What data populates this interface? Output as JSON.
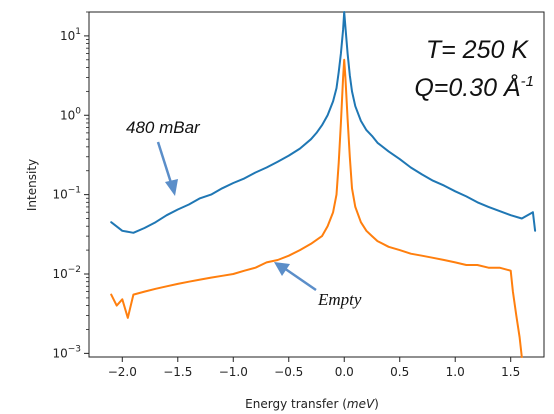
{
  "chart_data": {
    "type": "line",
    "xlabel": "Energy transfer",
    "xlabel_unit": "meV",
    "ylabel": "Intensity",
    "y_scale": "log",
    "xlim": [
      -2.3,
      1.8
    ],
    "ylim": [
      0.0009,
      20
    ],
    "x_ticks": [
      -2.0,
      -1.5,
      -1.0,
      -0.5,
      0.0,
      0.5,
      1.0,
      1.5
    ],
    "x_tick_labels": [
      "−2.0",
      "−1.5",
      "−1.0",
      "−0.5",
      "0.0",
      "0.5",
      "1.0",
      "1.5"
    ],
    "y_ticks": [
      0.001,
      0.01,
      0.1,
      1,
      10
    ],
    "y_tick_labels": [
      {
        "base": "10",
        "exp": "−3"
      },
      {
        "base": "10",
        "exp": "−2"
      },
      {
        "base": "10",
        "exp": "−1"
      },
      {
        "base": "10",
        "exp": "0"
      },
      {
        "base": "10",
        "exp": "1"
      }
    ],
    "grid": false,
    "series": [
      {
        "name": "480 mBar",
        "color": "#1f77b4",
        "x": [
          -2.1,
          -2.0,
          -1.9,
          -1.8,
          -1.7,
          -1.6,
          -1.5,
          -1.4,
          -1.3,
          -1.2,
          -1.1,
          -1.0,
          -0.9,
          -0.8,
          -0.7,
          -0.6,
          -0.5,
          -0.4,
          -0.3,
          -0.25,
          -0.2,
          -0.15,
          -0.1,
          -0.07,
          -0.05,
          -0.03,
          -0.01,
          0.0,
          0.01,
          0.03,
          0.05,
          0.07,
          0.1,
          0.15,
          0.2,
          0.25,
          0.3,
          0.4,
          0.5,
          0.6,
          0.7,
          0.8,
          0.9,
          1.0,
          1.1,
          1.2,
          1.3,
          1.4,
          1.5,
          1.6,
          1.7,
          1.72
        ],
        "values": [
          0.045,
          0.035,
          0.033,
          0.038,
          0.045,
          0.055,
          0.065,
          0.075,
          0.09,
          0.1,
          0.12,
          0.14,
          0.16,
          0.19,
          0.22,
          0.26,
          0.31,
          0.38,
          0.5,
          0.6,
          0.75,
          1.0,
          1.5,
          2.2,
          3.5,
          6.0,
          12.0,
          20.0,
          13.0,
          6.0,
          3.2,
          2.0,
          1.3,
          0.85,
          0.65,
          0.55,
          0.45,
          0.35,
          0.28,
          0.22,
          0.18,
          0.15,
          0.13,
          0.11,
          0.095,
          0.08,
          0.07,
          0.062,
          0.055,
          0.05,
          0.06,
          0.035
        ]
      },
      {
        "name": "Empty",
        "color": "#ff7f0e",
        "x": [
          -2.1,
          -2.05,
          -2.0,
          -1.95,
          -1.9,
          -1.8,
          -1.7,
          -1.6,
          -1.5,
          -1.4,
          -1.3,
          -1.2,
          -1.1,
          -1.0,
          -0.9,
          -0.8,
          -0.7,
          -0.6,
          -0.5,
          -0.4,
          -0.3,
          -0.2,
          -0.15,
          -0.1,
          -0.07,
          -0.05,
          -0.03,
          -0.01,
          0.0,
          0.01,
          0.03,
          0.05,
          0.07,
          0.1,
          0.15,
          0.2,
          0.25,
          0.3,
          0.4,
          0.5,
          0.6,
          0.7,
          0.8,
          0.9,
          1.0,
          1.1,
          1.2,
          1.3,
          1.4,
          1.5,
          1.52,
          1.55,
          1.58,
          1.6
        ],
        "values": [
          0.0055,
          0.004,
          0.0048,
          0.0028,
          0.0055,
          0.006,
          0.0065,
          0.007,
          0.0075,
          0.008,
          0.0085,
          0.009,
          0.0095,
          0.01,
          0.011,
          0.012,
          0.014,
          0.015,
          0.017,
          0.02,
          0.024,
          0.03,
          0.04,
          0.06,
          0.1,
          0.25,
          0.8,
          3.0,
          5.0,
          3.0,
          0.9,
          0.3,
          0.12,
          0.07,
          0.045,
          0.035,
          0.03,
          0.026,
          0.022,
          0.02,
          0.018,
          0.017,
          0.016,
          0.015,
          0.014,
          0.013,
          0.013,
          0.012,
          0.012,
          0.011,
          0.006,
          0.003,
          0.0016,
          0.0009
        ]
      }
    ],
    "annotations": [
      {
        "text": "480 mBar",
        "points_to": "480 mBar curve"
      },
      {
        "text": "Empty",
        "points_to": "Empty curve"
      }
    ],
    "conditions": {
      "temperature_label": "T= 250 K",
      "q_label": "Q=0.30 Å",
      "q_exponent": "-1"
    }
  }
}
